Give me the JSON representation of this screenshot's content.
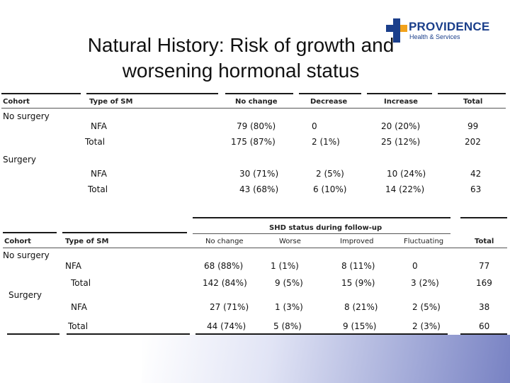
{
  "title": {
    "line1": "Natural History: Risk of growth and",
    "line2": "worsening hormonal status"
  },
  "logo": {
    "name": "PROVIDENCE",
    "subtitle": "Health & Services",
    "color": "#1b3f8b",
    "accent": "#f2a21b"
  },
  "table1": {
    "headers": [
      "Cohort",
      "Type of SM",
      "No change",
      "Decrease",
      "Increase",
      "Total"
    ],
    "cohort_no_surgery": "No surgery",
    "cohort_surgery": "Surgery",
    "rows": [
      [
        "NFA",
        "79 (80%)",
        "0",
        "20 (20%)",
        "99"
      ],
      [
        "Total",
        "175 (87%)",
        "2 (1%)",
        "25 (12%)",
        "202"
      ],
      [
        "NFA",
        "30 (71%)",
        "2 (5%)",
        "10 (24%)",
        "42"
      ],
      [
        "Total",
        "43 (68%)",
        "6 (10%)",
        "14 (22%)",
        "63"
      ]
    ]
  },
  "table2": {
    "group_header": "SHD status during follow-up",
    "headers": [
      "Cohort",
      "Type of SM",
      "No change",
      "Worse",
      "Improved",
      "Fluctuating",
      "Total"
    ],
    "cohort_no_surgery": "No surgery",
    "cohort_surgery": "Surgery",
    "rows": [
      [
        "NFA",
        "68 (88%)",
        "1 (1%)",
        "8 (11%)",
        "0",
        "77"
      ],
      [
        "Total",
        "142 (84%)",
        "9 (5%)",
        "15 (9%)",
        "3 (2%)",
        "169"
      ],
      [
        "NFA",
        "27 (71%)",
        "1 (3%)",
        "8 (21%)",
        "2 (5%)",
        "38"
      ],
      [
        "Total",
        "44 (74%)",
        "5 (8%)",
        "9 (15%)",
        "2 (3%)",
        "60"
      ]
    ]
  }
}
